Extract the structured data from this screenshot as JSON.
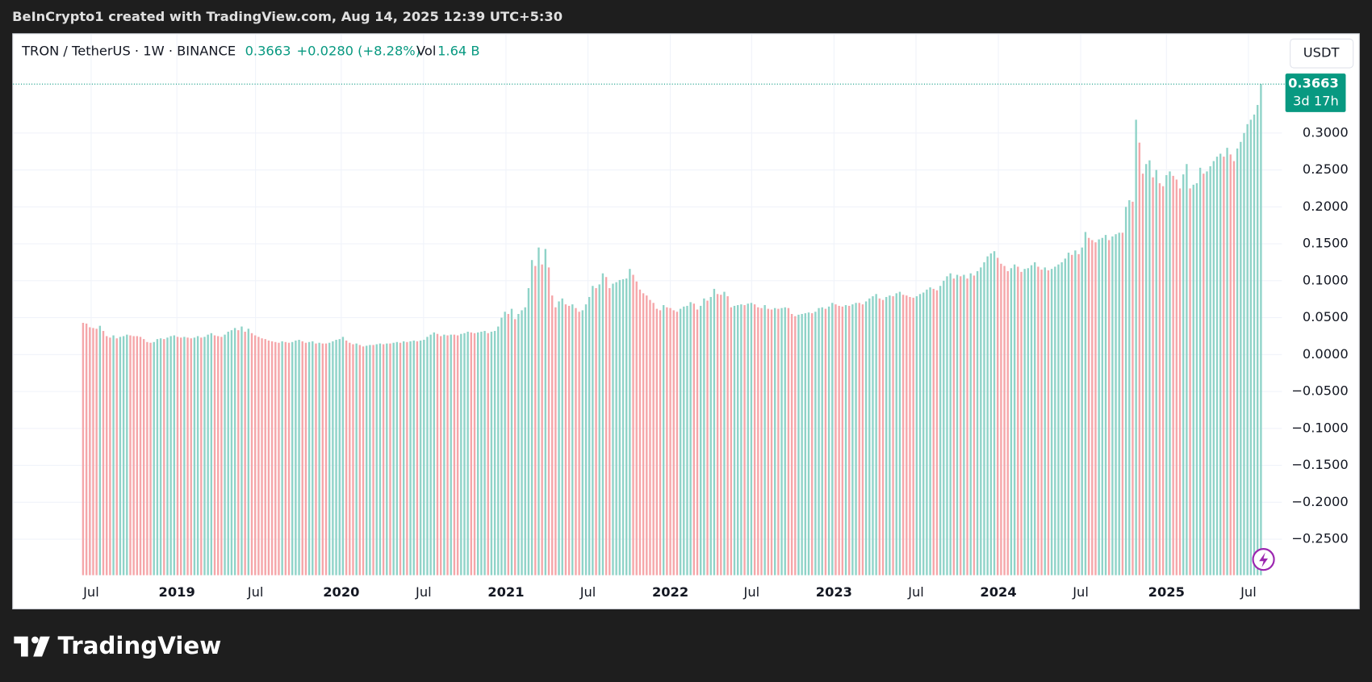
{
  "header": {
    "credit": "BeInCrypto1 created with TradingView.com, Aug 14, 2025 12:39 UTC+5:30"
  },
  "chart_data": {
    "type": "columns",
    "symbol": "TRON / TetherUS · 1W · BINANCE",
    "change": "+0.0280 (+8.28%)",
    "volume_label": "Vol",
    "volume": "1.64 B",
    "currency": "USDT",
    "countdown": "3d 17h",
    "up_color": "#8fd3c8",
    "down_color": "#f5a6a9",
    "price_color": "#089981",
    "grid": true,
    "values": [
      0.043,
      0.042,
      0.037,
      0.036,
      0.035,
      0.039,
      0.032,
      0.025,
      0.023,
      0.026,
      0.022,
      0.024,
      0.025,
      0.027,
      0.026,
      0.025,
      0.025,
      0.024,
      0.021,
      0.017,
      0.016,
      0.017,
      0.021,
      0.022,
      0.021,
      0.023,
      0.025,
      0.026,
      0.024,
      0.023,
      0.024,
      0.023,
      0.022,
      0.023,
      0.025,
      0.023,
      0.024,
      0.027,
      0.029,
      0.026,
      0.025,
      0.024,
      0.027,
      0.031,
      0.033,
      0.036,
      0.033,
      0.038,
      0.031,
      0.035,
      0.029,
      0.026,
      0.024,
      0.022,
      0.021,
      0.019,
      0.018,
      0.017,
      0.016,
      0.018,
      0.017,
      0.016,
      0.017,
      0.019,
      0.02,
      0.018,
      0.016,
      0.017,
      0.018,
      0.015,
      0.016,
      0.015,
      0.015,
      0.016,
      0.018,
      0.02,
      0.021,
      0.024,
      0.019,
      0.016,
      0.014,
      0.015,
      0.013,
      0.011,
      0.012,
      0.013,
      0.013,
      0.014,
      0.015,
      0.014,
      0.015,
      0.015,
      0.016,
      0.017,
      0.016,
      0.018,
      0.017,
      0.018,
      0.019,
      0.018,
      0.019,
      0.02,
      0.024,
      0.027,
      0.03,
      0.028,
      0.025,
      0.027,
      0.026,
      0.027,
      0.027,
      0.026,
      0.028,
      0.029,
      0.031,
      0.03,
      0.029,
      0.03,
      0.031,
      0.032,
      0.029,
      0.031,
      0.032,
      0.038,
      0.05,
      0.058,
      0.055,
      0.062,
      0.048,
      0.055,
      0.06,
      0.064,
      0.09,
      0.128,
      0.12,
      0.145,
      0.122,
      0.143,
      0.118,
      0.08,
      0.064,
      0.072,
      0.076,
      0.068,
      0.066,
      0.068,
      0.063,
      0.058,
      0.06,
      0.068,
      0.078,
      0.093,
      0.09,
      0.095,
      0.11,
      0.105,
      0.09,
      0.096,
      0.098,
      0.101,
      0.102,
      0.103,
      0.116,
      0.108,
      0.099,
      0.088,
      0.083,
      0.08,
      0.074,
      0.07,
      0.062,
      0.06,
      0.067,
      0.064,
      0.063,
      0.06,
      0.058,
      0.062,
      0.065,
      0.066,
      0.071,
      0.069,
      0.061,
      0.066,
      0.076,
      0.073,
      0.078,
      0.089,
      0.082,
      0.081,
      0.085,
      0.079,
      0.064,
      0.066,
      0.067,
      0.068,
      0.067,
      0.069,
      0.07,
      0.068,
      0.064,
      0.063,
      0.067,
      0.062,
      0.061,
      0.063,
      0.062,
      0.063,
      0.064,
      0.063,
      0.055,
      0.052,
      0.054,
      0.055,
      0.056,
      0.057,
      0.056,
      0.058,
      0.063,
      0.064,
      0.062,
      0.065,
      0.07,
      0.068,
      0.066,
      0.065,
      0.067,
      0.066,
      0.068,
      0.07,
      0.07,
      0.068,
      0.072,
      0.076,
      0.079,
      0.082,
      0.076,
      0.074,
      0.078,
      0.08,
      0.079,
      0.083,
      0.085,
      0.081,
      0.08,
      0.078,
      0.077,
      0.079,
      0.082,
      0.084,
      0.088,
      0.091,
      0.089,
      0.087,
      0.093,
      0.1,
      0.106,
      0.11,
      0.103,
      0.108,
      0.106,
      0.108,
      0.103,
      0.11,
      0.107,
      0.113,
      0.118,
      0.125,
      0.133,
      0.137,
      0.14,
      0.131,
      0.123,
      0.12,
      0.113,
      0.117,
      0.122,
      0.119,
      0.112,
      0.116,
      0.117,
      0.121,
      0.125,
      0.119,
      0.115,
      0.118,
      0.114,
      0.116,
      0.119,
      0.122,
      0.125,
      0.13,
      0.138,
      0.135,
      0.141,
      0.136,
      0.145,
      0.166,
      0.158,
      0.155,
      0.152,
      0.156,
      0.158,
      0.162,
      0.155,
      0.16,
      0.163,
      0.165,
      0.165,
      0.2,
      0.209,
      0.207,
      0.318,
      0.287,
      0.245,
      0.258,
      0.263,
      0.24,
      0.25,
      0.232,
      0.228,
      0.243,
      0.248,
      0.242,
      0.237,
      0.225,
      0.244,
      0.258,
      0.225,
      0.23,
      0.232,
      0.253,
      0.245,
      0.248,
      0.255,
      0.262,
      0.268,
      0.272,
      0.268,
      0.28,
      0.271,
      0.262,
      0.279,
      0.288,
      0.3,
      0.312,
      0.318,
      0.325,
      0.338,
      0.3663
    ],
    "xlim": [
      0,
      350
    ],
    "xticks": [
      {
        "value": 2.9,
        "label": "Jul"
      },
      {
        "value": 28.3,
        "label": "2019"
      },
      {
        "value": 51.6,
        "label": "Jul"
      },
      {
        "value": 77.0,
        "label": "2020"
      },
      {
        "value": 101.4,
        "label": "Jul"
      },
      {
        "value": 125.8,
        "label": "2021"
      },
      {
        "value": 150.1,
        "label": "Jul"
      },
      {
        "value": 174.5,
        "label": "2022"
      },
      {
        "value": 198.6,
        "label": "Jul"
      },
      {
        "value": 223.0,
        "label": "2023"
      },
      {
        "value": 247.3,
        "label": "Jul"
      },
      {
        "value": 271.7,
        "label": "2024"
      },
      {
        "value": 296.1,
        "label": "Jul"
      },
      {
        "value": 321.5,
        "label": "2025"
      },
      {
        "value": 345.8,
        "label": "Jul"
      }
    ],
    "ylim": [
      -0.2987,
      0.4327
    ],
    "yticks": [
      {
        "value": 0.3,
        "label": "0.3000"
      },
      {
        "value": 0.25,
        "label": "0.2500"
      },
      {
        "value": 0.2,
        "label": "0.2000"
      },
      {
        "value": 0.15,
        "label": "0.1500"
      },
      {
        "value": 0.1,
        "label": "0.1000"
      },
      {
        "value": 0.05,
        "label": "0.0500"
      },
      {
        "value": 0,
        "label": "0.0000"
      },
      {
        "value": -0.05,
        "label": "−0.0500"
      },
      {
        "value": -0.1,
        "label": "−0.1000"
      },
      {
        "value": -0.15,
        "label": "−0.1500"
      },
      {
        "value": -0.2,
        "label": "−0.2000"
      },
      {
        "value": -0.25,
        "label": "−0.2500"
      }
    ]
  },
  "footer": {
    "brand": "TradingView"
  }
}
